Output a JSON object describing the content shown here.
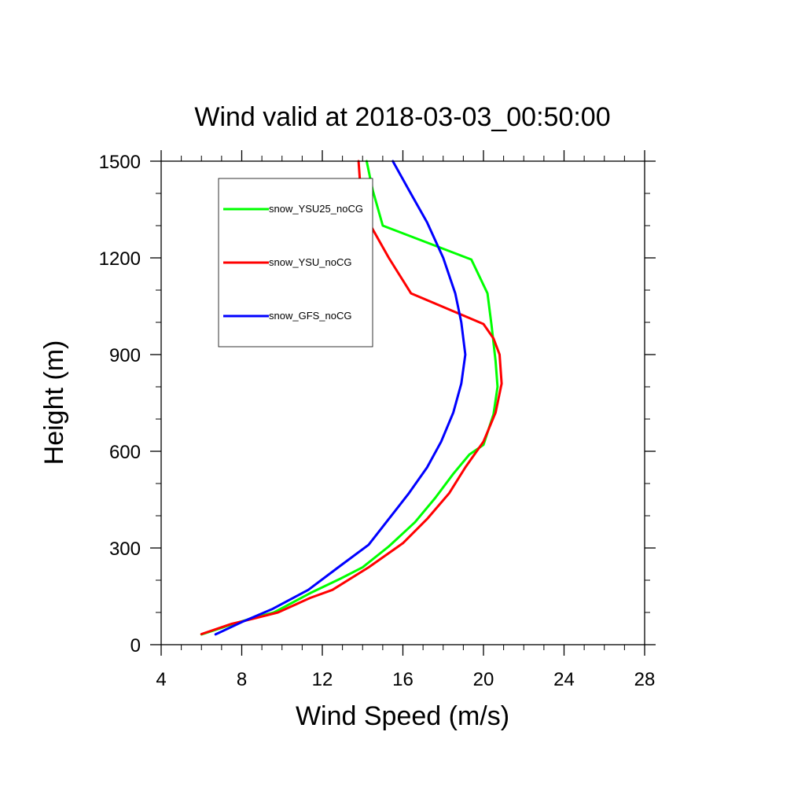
{
  "chart_data": {
    "type": "line",
    "title": "Wind valid at 2018-03-03_00:50:00",
    "xlabel": "Wind Speed (m/s)",
    "ylabel": "Height (m)",
    "xlim": [
      4,
      28
    ],
    "ylim": [
      0,
      1500
    ],
    "xticks": [
      4,
      8,
      12,
      16,
      20,
      24,
      28
    ],
    "yticks": [
      0,
      300,
      600,
      900,
      1200,
      1500
    ],
    "x_minor_step": 1,
    "y_minor_step": 100,
    "grid": false,
    "legend_position": "top-left",
    "series": [
      {
        "name": "snow_YSU25_noCG",
        "color": "#00ff00",
        "x": [
          6.0,
          6.9,
          7.6,
          8.4,
          9.6,
          11.4,
          12.9,
          14.0,
          15.3,
          16.6,
          17.6,
          18.5,
          19.3,
          20.0,
          20.5,
          20.7,
          20.6,
          20.4,
          20.2,
          19.4,
          15.0,
          14.5,
          14.2
        ],
        "y": [
          32,
          50,
          65,
          80,
          100,
          160,
          205,
          240,
          305,
          380,
          455,
          530,
          590,
          620,
          715,
          800,
          880,
          990,
          1090,
          1195,
          1300,
          1410,
          1500
        ]
      },
      {
        "name": "snow_YSU_noCG",
        "color": "#ff0000",
        "x": [
          6.0,
          6.8,
          7.5,
          8.2,
          9.8,
          11.4,
          12.5,
          14.3,
          16.0,
          17.2,
          18.3,
          19.1,
          20.0,
          20.6,
          20.9,
          20.8,
          20.5,
          20.0,
          16.4,
          15.3,
          14.4,
          13.9,
          13.8
        ],
        "y": [
          33,
          50,
          65,
          75,
          100,
          145,
          170,
          240,
          315,
          390,
          470,
          550,
          630,
          720,
          810,
          900,
          950,
          995,
          1090,
          1200,
          1300,
          1410,
          1500
        ]
      },
      {
        "name": "snow_GFS_noCG",
        "color": "#0000ff",
        "x": [
          6.7,
          8.0,
          9.5,
          11.3,
          12.9,
          14.3,
          15.3,
          16.3,
          17.2,
          17.9,
          18.5,
          18.9,
          19.1,
          18.9,
          18.6,
          18.0,
          17.2,
          16.3,
          15.5
        ],
        "y": [
          32,
          70,
          110,
          170,
          245,
          310,
          390,
          470,
          550,
          630,
          720,
          810,
          900,
          1000,
          1090,
          1200,
          1310,
          1410,
          1500
        ]
      }
    ]
  }
}
